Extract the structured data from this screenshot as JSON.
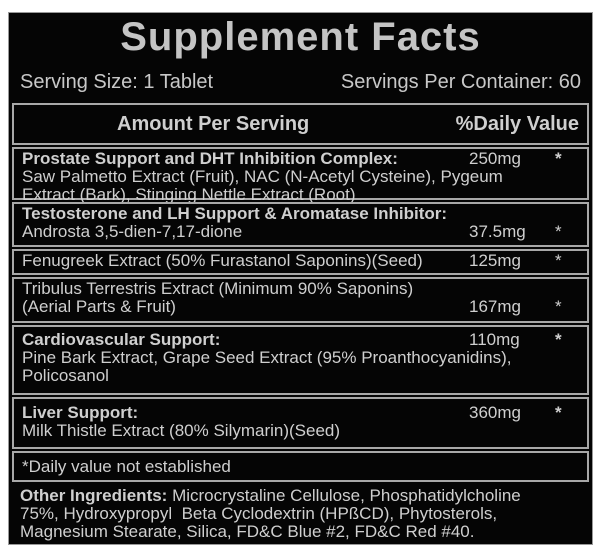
{
  "title": "Supplement Facts",
  "serving_size": "Serving Size: 1 Tablet",
  "servings_per_container": "Servings Per Container: 60",
  "header": {
    "amount": "Amount Per Serving",
    "dv": "%Daily Value"
  },
  "groups": [
    {
      "name": "Prostate Support and DHT Inhibition Complex:",
      "amount": "250mg",
      "dv": "*",
      "lines": [
        "Saw Palmetto Extract (Fruit), NAC (N-Acetyl Cysteine), Pygeum",
        "Extract (Bark), Stinging Nettle Extract (Root)"
      ]
    },
    {
      "name": "Testosterone and LH Support & Aromatase Inhibitor:",
      "lines": [
        "Androsta 3,5-dien-7,17-dione"
      ],
      "amount": "37.5mg",
      "dv": "*"
    },
    {
      "lines": [
        "Fenugreek Extract (50% Furastanol Saponins)(Seed)"
      ],
      "amount": "125mg",
      "dv": "*"
    },
    {
      "lines": [
        "Tribulus Terrestris Extract (Minimum 90% Saponins)",
        "(Aerial Parts & Fruit)"
      ],
      "amount": "167mg",
      "dv": "*"
    },
    {
      "name": "Cardiovascular Support:",
      "amount": "110mg",
      "dv": "*",
      "lines": [
        "Pine Bark Extract, Grape Seed Extract (95% Proanthocyanidins),",
        "Policosanol"
      ]
    },
    {
      "name": "Liver Support:",
      "amount": "360mg",
      "dv": "*",
      "lines": [
        "Milk Thistle Extract (80% Silymarin)(Seed)"
      ]
    }
  ],
  "footnote": "*Daily value not established",
  "other": {
    "label": "Other Ingredients:",
    "lines": [
      " Microcrystaline Cellulose, Phosphatidylcholine",
      "75%, Hydroxypropyl  Beta Cyclodextrin (HPßCD), Phytosterols,",
      "Magnesium Stearate, Silica, FD&C Blue #2, FD&C Red #40."
    ]
  }
}
